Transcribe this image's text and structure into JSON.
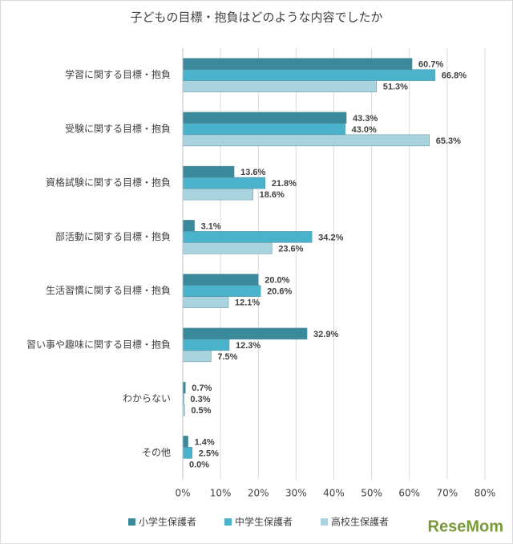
{
  "chart_data": {
    "type": "bar",
    "orientation": "horizontal",
    "title": "子どもの目標・抱負はどのような内容でしたか",
    "categories": [
      "学習に関する目標・抱負",
      "受験に関する目標・抱負",
      "資格試験に関する目標・抱負",
      "部活動に関する目標・抱負",
      "生活習慣に関する目標・抱負",
      "習い事や趣味に関する目標・抱負",
      "わからない",
      "その他"
    ],
    "series": [
      {
        "name": "小学生保護者",
        "color": "#3a8a9b",
        "values": [
          60.7,
          43.3,
          13.6,
          3.1,
          20.0,
          32.9,
          0.7,
          1.4
        ],
        "value_labels": [
          "60.7%",
          "43.3%",
          "13.6%",
          "3.1%",
          "20.0%",
          "32.9%",
          "0.7%",
          "1.4%"
        ]
      },
      {
        "name": "中学生保護者",
        "color": "#4ab2cb",
        "values": [
          66.8,
          43.0,
          21.8,
          34.2,
          20.6,
          12.3,
          0.3,
          2.5
        ],
        "value_labels": [
          "66.8%",
          "43.0%",
          "21.8%",
          "34.2%",
          "20.6%",
          "12.3%",
          "0.3%",
          "2.5%"
        ]
      },
      {
        "name": "高校生保護者",
        "color": "#a9d3df",
        "values": [
          51.3,
          65.3,
          18.6,
          23.6,
          12.1,
          7.5,
          0.5,
          0.0
        ],
        "value_labels": [
          "51.3%",
          "65.3%",
          "18.6%",
          "23.6%",
          "12.1%",
          "7.5%",
          "0.5%",
          "0.0%"
        ]
      }
    ],
    "xlim": [
      0,
      80
    ],
    "xticks": [
      {
        "value": 0,
        "label": "0%"
      },
      {
        "value": 10,
        "label": "10%"
      },
      {
        "value": 20,
        "label": "20%"
      },
      {
        "value": 30,
        "label": "30%"
      },
      {
        "value": 40,
        "label": "40%"
      },
      {
        "value": 50,
        "label": "50%"
      },
      {
        "value": 60,
        "label": "60%"
      },
      {
        "value": 70,
        "label": "70%"
      },
      {
        "value": 80,
        "label": "80%"
      }
    ],
    "grid": true,
    "legend": "bottom",
    "watermark": "ReseMom"
  }
}
